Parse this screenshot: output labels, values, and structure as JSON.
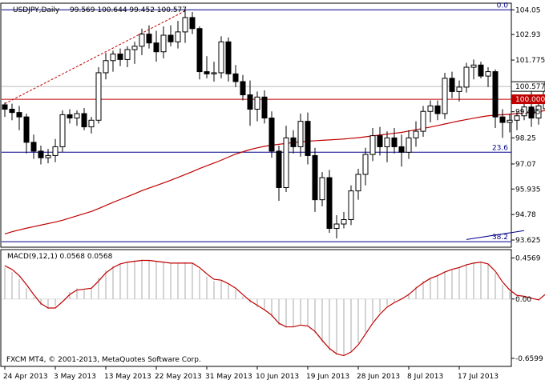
{
  "header": {
    "symbol": "USDJPY,Daily",
    "ohlc": "99.569 100.644 99.452 100.577"
  },
  "chart_data": {
    "type": "candlestick",
    "price_axis": {
      "ticks": [
        104.05,
        102.93,
        101.775,
        100.577,
        99.435,
        98.25,
        97.07,
        95.935,
        94.78,
        93.625
      ],
      "tick_labels": [
        "104.05",
        "102.93",
        "101.775",
        "100.577",
        "99.435",
        "98.25",
        "97.07",
        "95.935",
        "94.78",
        "93.625"
      ],
      "range": [
        93.3,
        104.35
      ]
    },
    "x_axis": {
      "dates": [
        "24 Apr 2013",
        "3 May 2013",
        "13 May 2013",
        "22 May 2013",
        "31 May 2013",
        "10 Jun 2013",
        "19 Jun 2013",
        "28 Jun 2013",
        "8 Jul 2013",
        "17 Jul 2013"
      ],
      "date_bar_index": [
        0,
        7,
        14,
        21,
        28,
        35,
        42,
        49,
        56,
        63
      ]
    },
    "candles": [
      [
        99.75,
        99.85,
        99.2,
        99.55
      ],
      [
        99.55,
        99.8,
        99.05,
        99.4
      ],
      [
        99.4,
        99.7,
        98.6,
        99.2
      ],
      [
        99.2,
        99.35,
        97.55,
        98.05
      ],
      [
        98.05,
        98.4,
        97.3,
        97.65
      ],
      [
        97.65,
        97.9,
        97.05,
        97.35
      ],
      [
        97.35,
        97.75,
        97.1,
        97.45
      ],
      [
        97.45,
        98.2,
        97.15,
        97.85
      ],
      [
        97.85,
        99.5,
        97.6,
        99.3
      ],
      [
        99.3,
        99.55,
        98.9,
        99.15
      ],
      [
        99.15,
        99.5,
        98.8,
        99.35
      ],
      [
        99.35,
        99.6,
        98.6,
        98.75
      ],
      [
        98.75,
        99.2,
        98.45,
        99.05
      ],
      [
        99.05,
        101.45,
        98.9,
        101.2
      ],
      [
        101.2,
        102.1,
        100.9,
        101.75
      ],
      [
        101.75,
        102.2,
        101.25,
        102.05
      ],
      [
        102.05,
        102.3,
        101.5,
        101.8
      ],
      [
        101.8,
        102.4,
        101.45,
        102.25
      ],
      [
        102.25,
        102.6,
        101.6,
        102.4
      ],
      [
        102.4,
        103.2,
        102.0,
        102.95
      ],
      [
        102.95,
        103.35,
        102.3,
        102.55
      ],
      [
        102.55,
        103.1,
        101.7,
        102.15
      ],
      [
        102.15,
        103.3,
        101.85,
        102.9
      ],
      [
        102.9,
        103.35,
        102.4,
        102.6
      ],
      [
        102.6,
        103.55,
        102.3,
        103.05
      ],
      [
        103.05,
        104.05,
        102.55,
        103.7
      ],
      [
        103.7,
        103.95,
        102.95,
        103.2
      ],
      [
        103.2,
        103.3,
        100.9,
        101.25
      ],
      [
        101.25,
        101.95,
        100.95,
        101.15
      ],
      [
        101.15,
        101.7,
        100.8,
        101.2
      ],
      [
        101.2,
        102.85,
        100.95,
        102.6
      ],
      [
        102.6,
        102.8,
        100.8,
        101.15
      ],
      [
        101.15,
        101.55,
        100.55,
        100.8
      ],
      [
        100.8,
        101.1,
        99.95,
        100.2
      ],
      [
        100.2,
        100.85,
        98.8,
        99.55
      ],
      [
        99.55,
        100.35,
        99.0,
        100.1
      ],
      [
        100.1,
        100.4,
        98.9,
        99.15
      ],
      [
        99.15,
        99.45,
        97.35,
        97.65
      ],
      [
        97.65,
        97.9,
        95.4,
        96.0
      ],
      [
        96.0,
        98.8,
        95.8,
        98.25
      ],
      [
        98.25,
        98.6,
        97.55,
        97.85
      ],
      [
        97.85,
        99.35,
        97.4,
        99.0
      ],
      [
        99.0,
        99.4,
        97.05,
        97.45
      ],
      [
        97.45,
        97.8,
        94.9,
        95.45
      ],
      [
        95.45,
        96.7,
        95.15,
        96.45
      ],
      [
        96.45,
        96.8,
        93.95,
        94.15
      ],
      [
        94.15,
        94.75,
        93.7,
        94.35
      ],
      [
        94.35,
        94.9,
        94.15,
        94.55
      ],
      [
        94.55,
        96.1,
        94.3,
        95.85
      ],
      [
        95.85,
        96.85,
        95.45,
        96.6
      ],
      [
        96.6,
        97.8,
        96.1,
        97.5
      ],
      [
        97.5,
        98.7,
        97.2,
        98.35
      ],
      [
        98.35,
        98.75,
        97.45,
        97.85
      ],
      [
        97.85,
        98.55,
        97.15,
        98.25
      ],
      [
        98.25,
        98.7,
        97.55,
        97.85
      ],
      [
        97.85,
        98.4,
        96.95,
        97.6
      ],
      [
        97.6,
        98.6,
        97.3,
        98.25
      ],
      [
        98.25,
        99.0,
        97.85,
        98.55
      ],
      [
        98.55,
        99.7,
        98.3,
        99.45
      ],
      [
        99.45,
        99.95,
        98.95,
        99.7
      ],
      [
        99.7,
        99.95,
        99.05,
        99.35
      ],
      [
        99.35,
        101.2,
        99.1,
        100.95
      ],
      [
        100.95,
        101.25,
        100.05,
        100.35
      ],
      [
        100.35,
        100.85,
        99.9,
        100.55
      ],
      [
        100.55,
        101.65,
        100.3,
        101.45
      ],
      [
        101.45,
        101.8,
        100.9,
        101.55
      ],
      [
        101.55,
        101.7,
        100.95,
        101.05
      ],
      [
        101.05,
        101.45,
        100.55,
        101.25
      ],
      [
        101.25,
        101.35,
        98.7,
        99.2
      ],
      [
        99.2,
        99.55,
        98.25,
        98.95
      ],
      [
        98.95,
        99.35,
        98.5,
        99.05
      ],
      [
        99.05,
        99.45,
        98.6,
        99.25
      ],
      [
        99.25,
        100.15,
        99.05,
        99.65
      ],
      [
        99.65,
        100.35,
        98.75,
        99.15
      ],
      [
        99.15,
        99.95,
        98.85,
        99.7
      ],
      [
        99.569,
        100.644,
        99.452,
        100.577
      ]
    ],
    "ma": [
      93.9,
      94.0,
      94.08,
      94.16,
      94.23,
      94.3,
      94.37,
      94.44,
      94.52,
      94.62,
      94.72,
      94.82,
      94.92,
      95.05,
      95.19,
      95.33,
      95.46,
      95.59,
      95.72,
      95.86,
      95.98,
      96.09,
      96.21,
      96.33,
      96.46,
      96.59,
      96.72,
      96.86,
      96.99,
      97.11,
      97.24,
      97.38,
      97.52,
      97.62,
      97.72,
      97.8,
      97.87,
      97.92,
      97.96,
      98.0,
      98.04,
      98.07,
      98.1,
      98.12,
      98.14,
      98.16,
      98.18,
      98.2,
      98.23,
      98.26,
      98.3,
      98.34,
      98.38,
      98.42,
      98.46,
      98.5,
      98.56,
      98.62,
      98.68,
      98.74,
      98.81,
      98.88,
      98.95,
      99.02,
      99.08,
      99.14,
      99.2,
      99.25,
      99.28,
      99.3,
      99.32,
      99.35,
      99.38,
      99.4,
      99.43,
      99.5
    ],
    "levels": [
      {
        "value": 104.05,
        "label": "0.0",
        "color": "#00008b"
      },
      {
        "value": 100.0,
        "label": "100.000",
        "color": "#c00000"
      },
      {
        "value": 97.6,
        "label": "23.6",
        "color": "#00008b"
      },
      {
        "value": 93.55,
        "label": "38.2",
        "color": "#00008b"
      }
    ],
    "trend_lines": [
      {
        "from": [
          0,
          99.8
        ],
        "to": [
          25,
          104.0
        ],
        "style": "dashed",
        "color": "#c00000"
      },
      {
        "from": [
          64,
          93.65
        ],
        "to": [
          72,
          94.05
        ],
        "style": "solid",
        "color": "#00008b"
      }
    ],
    "macd": {
      "title": "MACD(9,12,1) 0.0568 0.0568",
      "axis_ticks": [
        0.4569,
        0.0,
        -0.6599
      ],
      "axis_labels": [
        "0.4569",
        "0.00",
        "-0.6599"
      ],
      "range": [
        -0.75,
        0.55
      ],
      "histogram": [
        0.35,
        0.3,
        0.22,
        0.12,
        0.02,
        -0.07,
        -0.11,
        -0.08,
        0.0,
        0.08,
        0.12,
        0.1,
        0.12,
        0.24,
        0.32,
        0.37,
        0.4,
        0.42,
        0.43,
        0.44,
        0.43,
        0.42,
        0.41,
        0.4,
        0.4,
        0.41,
        0.4,
        0.33,
        0.25,
        0.2,
        0.21,
        0.16,
        0.1,
        0.03,
        -0.04,
        -0.09,
        -0.13,
        -0.2,
        -0.29,
        -0.32,
        -0.31,
        -0.28,
        -0.3,
        -0.38,
        -0.48,
        -0.57,
        -0.62,
        -0.63,
        -0.58,
        -0.49,
        -0.37,
        -0.25,
        -0.15,
        -0.07,
        -0.03,
        0.01,
        0.06,
        0.14,
        0.2,
        0.24,
        0.26,
        0.31,
        0.33,
        0.36,
        0.39,
        0.41,
        0.42,
        0.39,
        0.29,
        0.16,
        0.08,
        0.02,
        0.03,
        0.01,
        -0.01,
        0.0568
      ],
      "signal": [
        0.37,
        0.33,
        0.26,
        0.16,
        0.05,
        -0.05,
        -0.1,
        -0.1,
        -0.03,
        0.05,
        0.1,
        0.11,
        0.12,
        0.2,
        0.29,
        0.35,
        0.39,
        0.41,
        0.42,
        0.43,
        0.43,
        0.42,
        0.41,
        0.4,
        0.4,
        0.4,
        0.4,
        0.35,
        0.28,
        0.22,
        0.21,
        0.17,
        0.12,
        0.05,
        -0.02,
        -0.07,
        -0.12,
        -0.18,
        -0.27,
        -0.31,
        -0.31,
        -0.29,
        -0.3,
        -0.36,
        -0.46,
        -0.55,
        -0.61,
        -0.63,
        -0.59,
        -0.51,
        -0.39,
        -0.27,
        -0.17,
        -0.09,
        -0.04,
        0.0,
        0.05,
        0.12,
        0.18,
        0.23,
        0.26,
        0.3,
        0.33,
        0.35,
        0.38,
        0.4,
        0.41,
        0.39,
        0.31,
        0.19,
        0.1,
        0.04,
        0.03,
        0.01,
        -0.01,
        0.0568
      ]
    }
  },
  "footer": {
    "copyright": "FXCM MT4, © 2001-2013, MetaQuotes Software Corp."
  },
  "colors": {
    "bull_fill": "#ffffff",
    "bear_fill": "#000000",
    "candle_stroke": "#000000",
    "ma": "#c00000",
    "macd_hist": "#a9a9a9",
    "macd_signal": "#c00000",
    "current_price_bg": "#ffffff"
  }
}
